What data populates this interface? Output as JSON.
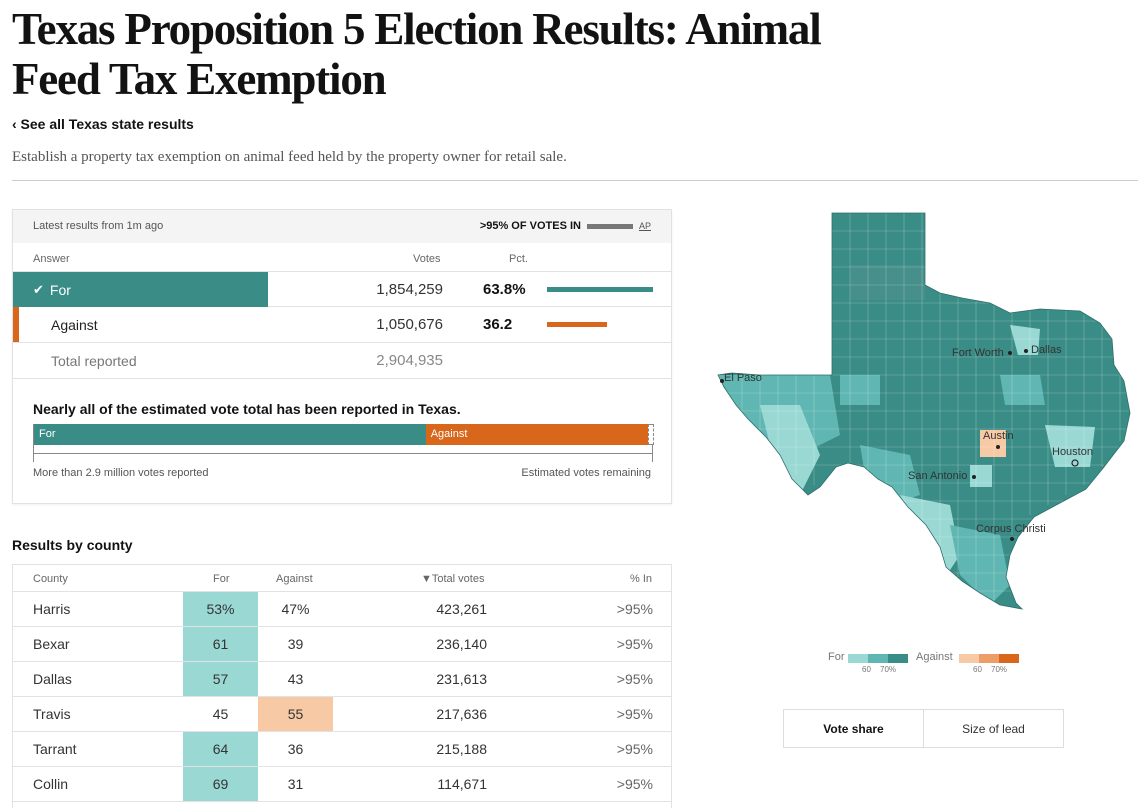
{
  "header": {
    "title": "Texas Proposition 5 Election Results: Animal Feed Tax Exemption",
    "back_link": "‹ See all Texas state results",
    "description": "Establish a property tax exemption on animal feed held by the property owner for retail sale."
  },
  "summary": {
    "latest": "Latest results from 1m ago",
    "votes_in": ">95% OF VOTES IN",
    "source": "AP",
    "columns": {
      "answer": "Answer",
      "votes": "Votes",
      "pct": "Pct."
    },
    "rows": [
      {
        "answer": "For",
        "votes": "1,854,259",
        "pct": "63.8%",
        "pct_value": 63.8,
        "winner": true
      },
      {
        "answer": "Against",
        "votes": "1,050,676",
        "pct": "36.2",
        "pct_value": 36.2,
        "winner": false
      }
    ],
    "total_label": "Total reported",
    "total_votes": "2,904,935"
  },
  "estimate": {
    "title": "Nearly all of the estimated vote total has been reported in Texas.",
    "for_label": "For",
    "against_label": "Against",
    "for_share": 63.8,
    "against_share": 36.2,
    "left_note": "More than 2.9 million votes reported",
    "right_note": "Estimated votes remaining"
  },
  "counties": {
    "heading": "Results by county",
    "columns": {
      "county": "County",
      "for": "For",
      "against": "Against",
      "total": "▼Total votes",
      "in": "% In"
    },
    "rows": [
      {
        "county": "Harris",
        "for": "53%",
        "against": "47%",
        "total": "423,261",
        "in": ">95%",
        "winner": "for"
      },
      {
        "county": "Bexar",
        "for": "61",
        "against": "39",
        "total": "236,140",
        "in": ">95%",
        "winner": "for"
      },
      {
        "county": "Dallas",
        "for": "57",
        "against": "43",
        "total": "231,613",
        "in": ">95%",
        "winner": "for"
      },
      {
        "county": "Travis",
        "for": "45",
        "against": "55",
        "total": "217,636",
        "in": ">95%",
        "winner": "against"
      },
      {
        "county": "Tarrant",
        "for": "64",
        "against": "36",
        "total": "215,188",
        "in": ">95%",
        "winner": "for"
      },
      {
        "county": "Collin",
        "for": "69",
        "against": "31",
        "total": "114,671",
        "in": ">95%",
        "winner": "for"
      }
    ]
  },
  "map": {
    "cities": {
      "el_paso": "El Paso",
      "fort_worth": "Fort Worth",
      "dallas": "Dallas",
      "austin": "Austin",
      "houston": "Houston",
      "san_antonio": "San Antonio",
      "corpus_christi": "Corpus Christi"
    },
    "legend": {
      "for_label": "For",
      "against_label": "Against",
      "tick_60": "60",
      "tick_70": "70%"
    },
    "toggle": {
      "vote_share": "Vote share",
      "size_of_lead": "Size of lead"
    }
  },
  "colors": {
    "for_dark": "#3a8c86",
    "for_mid": "#5fb6b2",
    "for_light": "#9ad8d4",
    "against_dark": "#d8671c",
    "against_mid": "#ec9d68",
    "against_light": "#f7c9a4"
  }
}
